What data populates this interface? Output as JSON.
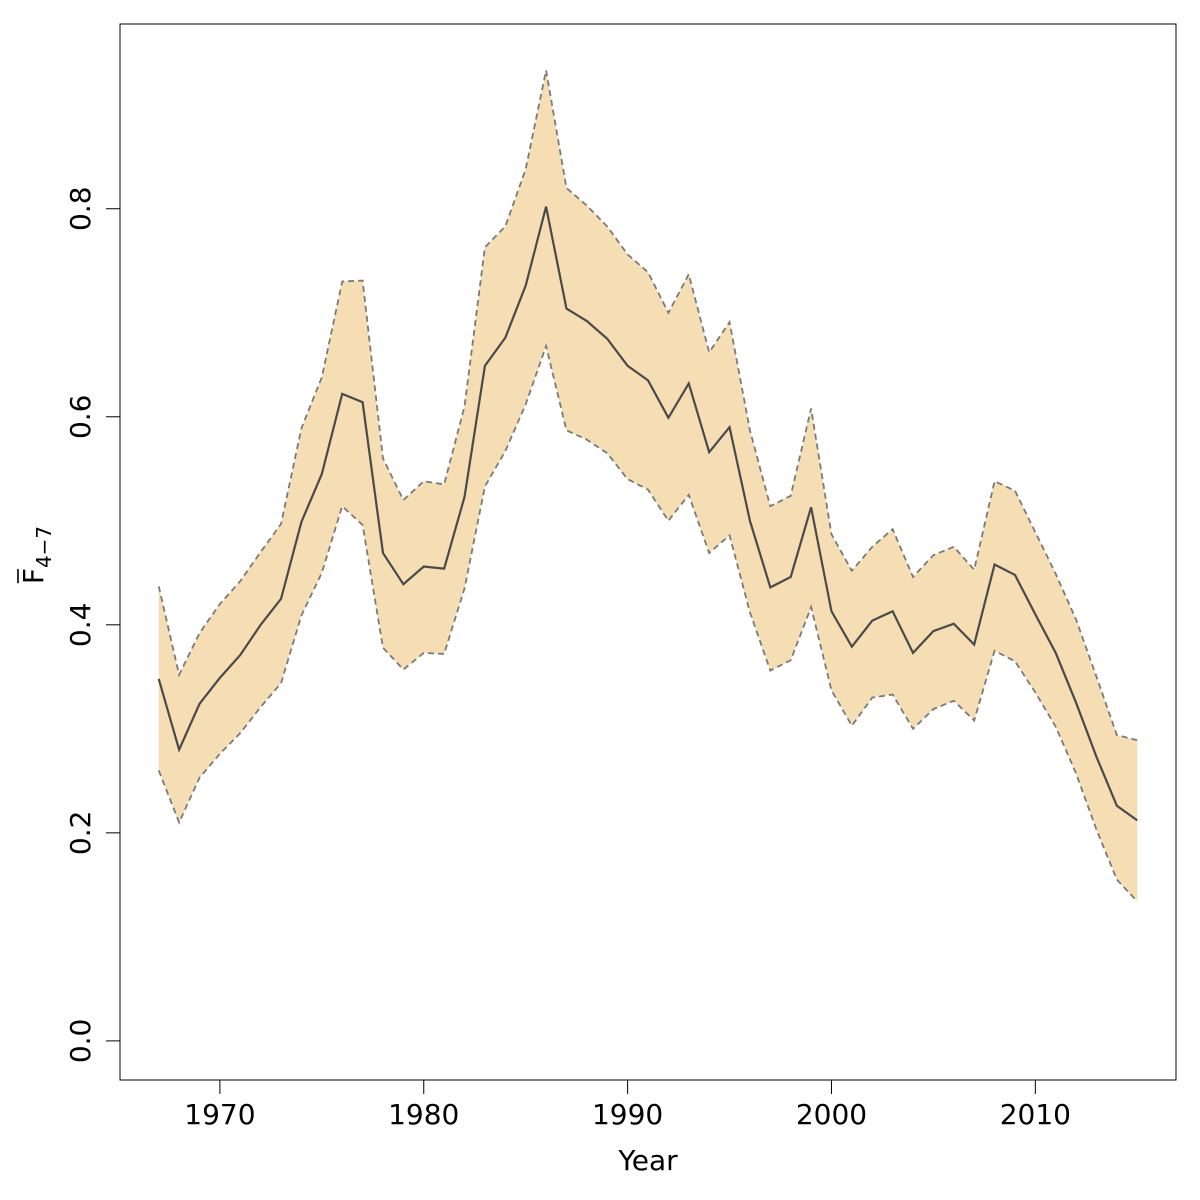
{
  "chart_data": {
    "type": "line",
    "xlabel": "Year",
    "ylabel_main": "F",
    "ylabel_sub": "4−7",
    "xlim": [
      1965.1,
      2016.9
    ],
    "ylim": [
      -0.0376,
      0.9776
    ],
    "x_ticks": [
      1970,
      1980,
      1990,
      2000,
      2010
    ],
    "x_tick_labels": [
      "1970",
      "1980",
      "1990",
      "2000",
      "2010"
    ],
    "y_ticks": [
      0.0,
      0.2,
      0.4,
      0.6,
      0.8
    ],
    "y_tick_labels": [
      "0.0",
      "0.2",
      "0.4",
      "0.6",
      "0.8"
    ],
    "grid": false,
    "legend": "none",
    "colors": {
      "band": "#f5deb3",
      "line": "#4a4a4a",
      "band_edge": "#7a7a7a"
    },
    "x": [
      1967,
      1968,
      1969,
      1970,
      1971,
      1972,
      1973,
      1974,
      1975,
      1976,
      1977,
      1978,
      1979,
      1980,
      1981,
      1982,
      1983,
      1984,
      1985,
      1986,
      1987,
      1988,
      1989,
      1990,
      1991,
      1992,
      1993,
      1994,
      1995,
      1996,
      1997,
      1998,
      1999,
      2000,
      2001,
      2002,
      2003,
      2004,
      2005,
      2006,
      2007,
      2008,
      2009,
      2010,
      2011,
      2012,
      2013,
      2014,
      2015
    ],
    "series": [
      {
        "values": [
          0.348,
          0.28,
          0.324,
          0.349,
          0.371,
          0.4,
          0.425,
          0.499,
          0.545,
          0.622,
          0.614,
          0.469,
          0.439,
          0.456,
          0.454,
          0.523,
          0.649,
          0.676,
          0.726,
          0.802,
          0.704,
          0.692,
          0.675,
          0.649,
          0.635,
          0.599,
          0.632,
          0.566,
          0.59,
          0.5,
          0.436,
          0.446,
          0.513,
          0.413,
          0.379,
          0.404,
          0.413,
          0.373,
          0.394,
          0.401,
          0.381,
          0.458,
          0.448,
          0.41,
          0.373,
          0.325,
          0.273,
          0.226,
          0.212
        ]
      },
      {
        "values": [
          0.437,
          0.352,
          0.392,
          0.42,
          0.442,
          0.47,
          0.497,
          0.589,
          0.638,
          0.73,
          0.731,
          0.56,
          0.52,
          0.538,
          0.535,
          0.61,
          0.763,
          0.783,
          0.838,
          0.933,
          0.82,
          0.803,
          0.783,
          0.756,
          0.739,
          0.7,
          0.737,
          0.662,
          0.691,
          0.587,
          0.514,
          0.524,
          0.608,
          0.487,
          0.452,
          0.475,
          0.492,
          0.446,
          0.467,
          0.475,
          0.453,
          0.538,
          0.529,
          0.489,
          0.449,
          0.405,
          0.35,
          0.294,
          0.289
        ]
      },
      {
        "values": [
          0.26,
          0.21,
          0.253,
          0.276,
          0.296,
          0.321,
          0.344,
          0.409,
          0.45,
          0.514,
          0.496,
          0.378,
          0.357,
          0.373,
          0.372,
          0.435,
          0.533,
          0.567,
          0.612,
          0.668,
          0.587,
          0.578,
          0.565,
          0.54,
          0.53,
          0.5,
          0.525,
          0.469,
          0.486,
          0.412,
          0.356,
          0.366,
          0.417,
          0.337,
          0.303,
          0.33,
          0.333,
          0.3,
          0.319,
          0.327,
          0.308,
          0.375,
          0.365,
          0.335,
          0.302,
          0.257,
          0.203,
          0.155,
          0.134
        ]
      }
    ]
  }
}
